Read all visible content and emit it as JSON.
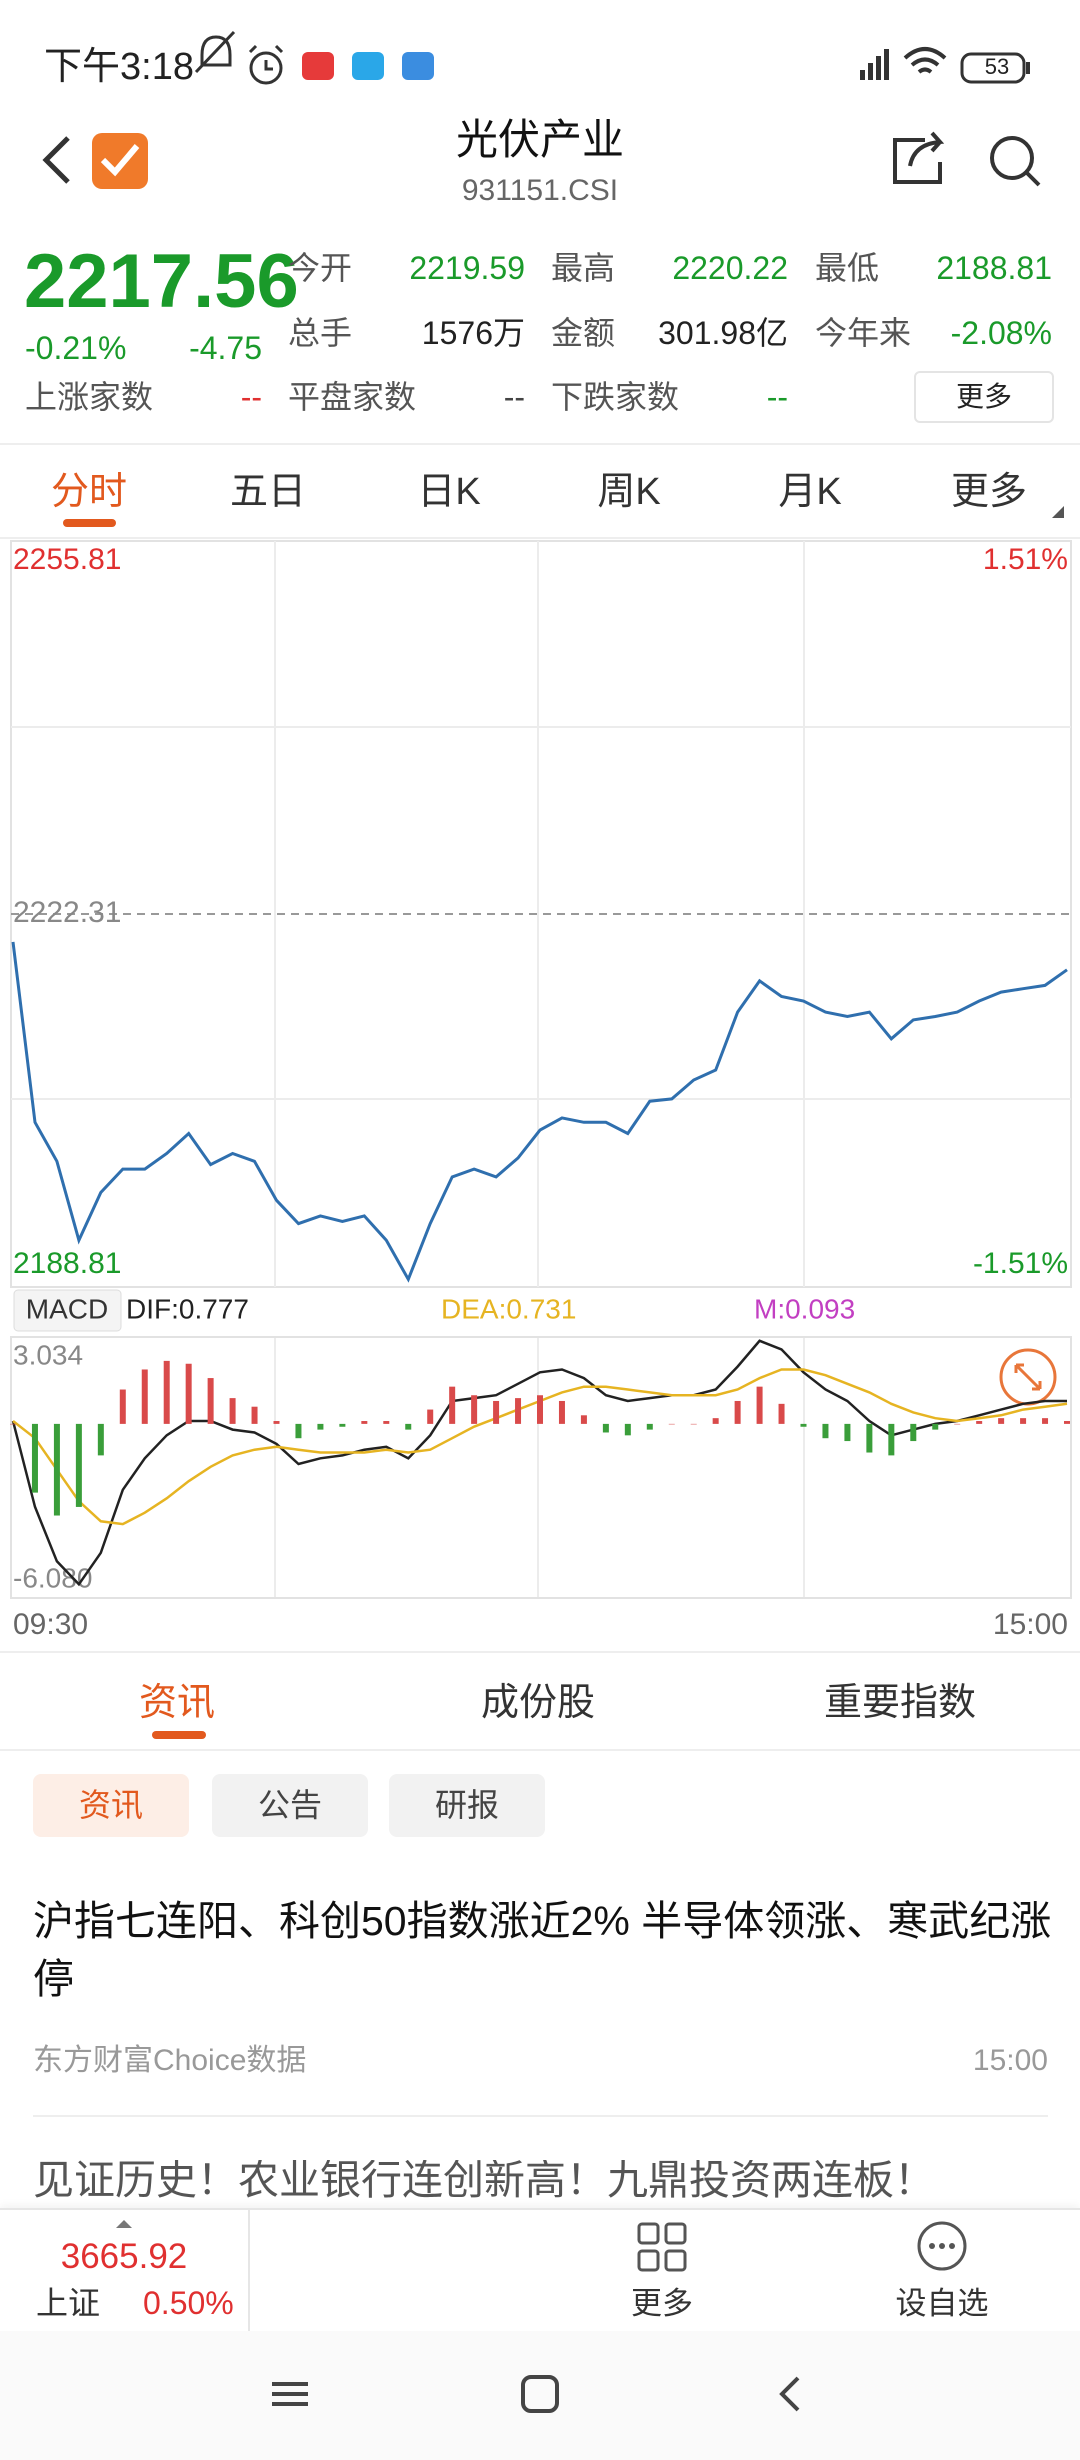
{
  "status_bar": {
    "time": "下午3:18",
    "battery": "53"
  },
  "header": {
    "title": "光伏产业",
    "code": "931151.CSI"
  },
  "quote": {
    "price": "2217.56",
    "change_pct": "-0.21%",
    "change": "-4.75",
    "stats": [
      {
        "label": "今开",
        "value": "2219.59"
      },
      {
        "label": "最高",
        "value": "2220.22"
      },
      {
        "label": "最低",
        "value": "2188.81"
      },
      {
        "label": "总手",
        "value": "1576万"
      },
      {
        "label": "金额",
        "value": "301.98亿"
      },
      {
        "label": "今年来",
        "value": "-2.08%"
      }
    ],
    "breadth": [
      {
        "label": "上涨家数",
        "value": "--"
      },
      {
        "label": "平盘家数",
        "value": "--"
      },
      {
        "label": "下跌家数",
        "value": "--"
      }
    ],
    "more": "更多"
  },
  "period_tabs": [
    "分时",
    "五日",
    "日K",
    "周K",
    "月K",
    "更多"
  ],
  "chart_data": [
    {
      "type": "line",
      "color": "#2f6fae",
      "values": [
        2219.8,
        2203.6,
        2200.1,
        2193.0,
        2197.3,
        2199.4,
        2199.4,
        2200.8,
        2202.6,
        2199.8,
        2200.8,
        2200.1,
        2196.6,
        2194.5,
        2195.2,
        2194.7,
        2195.2,
        2193.0,
        2189.5,
        2194.5,
        2198.7,
        2199.4,
        2198.7,
        2200.4,
        2202.9,
        2204.0,
        2203.6,
        2203.6,
        2202.6,
        2205.5,
        2205.7,
        2207.4,
        2208.3,
        2213.5,
        2216.3,
        2214.9,
        2214.5,
        2213.5,
        2213.1,
        2213.5,
        2211.1,
        2212.8,
        2213.1,
        2213.5,
        2214.5,
        2215.3,
        2215.6,
        2215.9,
        2217.3
      ],
      "ylim": [
        2188.81,
        2255.81
      ],
      "yticks": [
        2188.81,
        2255.81
      ],
      "reference": 2222.31,
      "y2lim": [
        -1.51,
        1.51
      ],
      "y2ticks": [
        {
          "value": -1.51,
          "label": "-1.51%"
        },
        {
          "value": 1.51,
          "label": "1.51%"
        }
      ]
    },
    {
      "type": "macd",
      "indicator": "MACD",
      "ylim": [
        -6.08,
        3.034
      ],
      "yticks": [
        {
          "value": -6.08,
          "label": "-6.080"
        },
        3.034
      ],
      "x_labels": [
        "09:30",
        "15:00"
      ],
      "series": [
        {
          "name": "DIF:0.777",
          "color": "#222222",
          "values": [
            0.1,
            -2.9,
            -4.8,
            -5.6,
            -4.5,
            -2.3,
            -1.2,
            -0.4,
            0.1,
            0.1,
            -0.2,
            -0.3,
            -0.7,
            -1.4,
            -1.2,
            -1.1,
            -0.9,
            -0.8,
            -1.2,
            -0.4,
            0.8,
            0.9,
            1.0,
            1.4,
            1.8,
            1.9,
            1.6,
            1.0,
            0.8,
            0.9,
            1.0,
            1.0,
            1.2,
            2.0,
            2.9,
            2.6,
            1.8,
            1.2,
            0.8,
            0.1,
            -0.4,
            -0.2,
            0.0,
            0.1,
            0.3,
            0.5,
            0.7,
            0.8,
            0.8
          ]
        },
        {
          "name": "DEA:0.731",
          "color": "#e6b422",
          "values": [
            0.1,
            -0.5,
            -1.6,
            -2.7,
            -3.4,
            -3.5,
            -3.1,
            -2.6,
            -2.0,
            -1.5,
            -1.1,
            -0.9,
            -0.8,
            -0.9,
            -1.0,
            -1.0,
            -1.0,
            -0.9,
            -1.0,
            -0.9,
            -0.5,
            -0.1,
            0.2,
            0.5,
            0.8,
            1.1,
            1.3,
            1.3,
            1.2,
            1.1,
            1.0,
            1.0,
            1.0,
            1.2,
            1.6,
            1.9,
            1.9,
            1.7,
            1.4,
            1.1,
            0.7,
            0.4,
            0.2,
            0.1,
            0.2,
            0.3,
            0.5,
            0.6,
            0.7
          ]
        },
        {
          "name": "M:0.093",
          "color": "#c23fc2",
          "up_color": "#d94a4a",
          "down_color": "#3a9e3a",
          "values": [
            0.0,
            -2.4,
            -3.2,
            -2.9,
            -1.1,
            1.2,
            1.9,
            2.2,
            2.1,
            1.6,
            0.9,
            0.6,
            0.1,
            -0.5,
            -0.2,
            -0.1,
            0.1,
            0.1,
            -0.2,
            0.5,
            1.3,
            1.0,
            0.8,
            0.9,
            1.0,
            0.8,
            0.3,
            -0.3,
            -0.4,
            -0.2,
            0.0,
            0.0,
            0.2,
            0.8,
            1.3,
            0.7,
            -0.1,
            -0.5,
            -0.6,
            -1.0,
            -1.1,
            -0.6,
            -0.2,
            0.0,
            0.1,
            0.2,
            0.2,
            0.2,
            0.1
          ]
        }
      ]
    }
  ],
  "news_tabs": [
    "资讯",
    "成份股",
    "重要指数"
  ],
  "filters": [
    "资讯",
    "公告",
    "研报"
  ],
  "news": [
    {
      "title": "沪指七连阳、科创50指数涨近2% 半导体领涨、寒武纪涨停",
      "source": "东方财富Choice数据",
      "time": "15:00"
    },
    {
      "title": "见证历史！农业银行连创新高！九鼎投资两连板！"
    }
  ],
  "bottom_bar": {
    "index_value": "3665.92",
    "index_name": "上证",
    "index_change": "0.50%",
    "actions": [
      "更多",
      "设自选"
    ]
  }
}
